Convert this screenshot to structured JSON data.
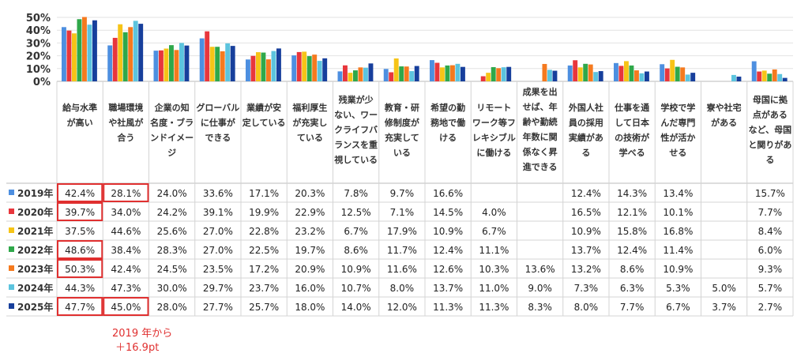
{
  "chart_data": {
    "type": "bar",
    "yticks": [
      "50%",
      "40%",
      "30%",
      "20%",
      "10%",
      "0%"
    ],
    "ylim": [
      0,
      50
    ],
    "categories": [
      [
        "給与水準",
        "が高い"
      ],
      [
        "職場環境",
        "や社風が",
        "合う"
      ],
      [
        "企業の知",
        "名度・ブラ",
        "ンドイメー",
        "ジ"
      ],
      [
        "グローバル",
        "に仕事が",
        "できる"
      ],
      [
        "業績が安",
        "定している"
      ],
      [
        "福利厚生",
        "が充実し",
        "ている"
      ],
      [
        "残業が少",
        "ない、ワー",
        "クライフバ",
        "ランスを重",
        "視している"
      ],
      [
        "教育・研",
        "修制度が",
        "充実して",
        "いる"
      ],
      [
        "希望の勤",
        "務地で働",
        "ける"
      ],
      [
        "リモート",
        "ワーク等フ",
        "レキシブル",
        "に働ける"
      ],
      [
        "成果を出",
        "せば、年",
        "齢や勤続",
        "年数に関",
        "係なく昇",
        "進できる"
      ],
      [
        "外国人社",
        "員の採用",
        "実績があ",
        "る"
      ],
      [
        "仕事を通",
        "して日本",
        "の技術が",
        "学べる"
      ],
      [
        "学校で学",
        "んだ専門",
        "性が活か",
        "せる"
      ],
      [
        "寮や社宅",
        "がある"
      ],
      [
        "母国に拠",
        "点がある",
        "など、母国",
        "と関りがあ",
        "る"
      ]
    ],
    "series": [
      {
        "name": "2019年",
        "color": "#4d8fe0",
        "values": [
          42.4,
          28.1,
          24.0,
          33.6,
          17.1,
          20.3,
          7.8,
          9.7,
          16.6,
          null,
          null,
          12.4,
          14.3,
          13.4,
          null,
          15.7
        ],
        "labels": [
          "42.4%",
          "28.1%",
          "24.0%",
          "33.6%",
          "17.1%",
          "20.3%",
          "7.8%",
          "9.7%",
          "16.6%",
          "",
          "",
          "12.4%",
          "14.3%",
          "13.4%",
          "",
          "15.7%"
        ]
      },
      {
        "name": "2020年",
        "color": "#e8363c",
        "values": [
          39.7,
          34.0,
          24.2,
          39.1,
          19.9,
          22.9,
          12.5,
          7.1,
          14.5,
          4.0,
          null,
          16.5,
          12.1,
          10.1,
          null,
          7.7
        ],
        "labels": [
          "39.7%",
          "34.0%",
          "24.2%",
          "39.1%",
          "19.9%",
          "22.9%",
          "12.5%",
          "7.1%",
          "14.5%",
          "4.0%",
          "",
          "16.5%",
          "12.1%",
          "10.1%",
          "",
          "7.7%"
        ]
      },
      {
        "name": "2021年",
        "color": "#f6c417",
        "values": [
          37.5,
          44.6,
          25.6,
          27.0,
          22.8,
          23.2,
          6.7,
          17.9,
          10.9,
          6.7,
          null,
          10.9,
          15.8,
          16.8,
          null,
          8.4
        ],
        "labels": [
          "37.5%",
          "44.6%",
          "25.6%",
          "27.0%",
          "22.8%",
          "23.2%",
          "6.7%",
          "17.9%",
          "10.9%",
          "6.7%",
          "",
          "10.9%",
          "15.8%",
          "16.8%",
          "",
          "8.4%"
        ]
      },
      {
        "name": "2022年",
        "color": "#2fa84a",
        "values": [
          48.6,
          38.4,
          28.3,
          27.0,
          22.5,
          19.7,
          8.6,
          11.7,
          12.4,
          11.1,
          null,
          13.7,
          12.4,
          11.4,
          null,
          6.0
        ],
        "labels": [
          "48.6%",
          "38.4%",
          "28.3%",
          "27.0%",
          "22.5%",
          "19.7%",
          "8.6%",
          "11.7%",
          "12.4%",
          "11.1%",
          "",
          "13.7%",
          "12.4%",
          "11.4%",
          "",
          "6.0%"
        ]
      },
      {
        "name": "2023年",
        "color": "#f57a1f",
        "values": [
          50.3,
          42.4,
          24.5,
          23.5,
          17.2,
          20.9,
          10.9,
          11.6,
          12.6,
          10.3,
          13.6,
          13.2,
          8.6,
          10.9,
          null,
          9.3
        ],
        "labels": [
          "50.3%",
          "42.4%",
          "24.5%",
          "23.5%",
          "17.2%",
          "20.9%",
          "10.9%",
          "11.6%",
          "12.6%",
          "10.3%",
          "13.6%",
          "13.2%",
          "8.6%",
          "10.9%",
          "",
          "9.3%"
        ]
      },
      {
        "name": "2024年",
        "color": "#5cc4de",
        "values": [
          44.3,
          47.3,
          30.0,
          29.7,
          23.7,
          16.0,
          10.7,
          8.0,
          13.7,
          11.0,
          9.0,
          7.3,
          6.3,
          5.3,
          5.0,
          5.7
        ],
        "labels": [
          "44.3%",
          "47.3%",
          "30.0%",
          "29.7%",
          "23.7%",
          "16.0%",
          "10.7%",
          "8.0%",
          "13.7%",
          "11.0%",
          "9.0%",
          "7.3%",
          "6.3%",
          "5.3%",
          "5.0%",
          "5.7%"
        ]
      },
      {
        "name": "2025年",
        "color": "#173f9c",
        "values": [
          47.7,
          45.0,
          28.0,
          27.7,
          25.7,
          18.0,
          14.0,
          12.0,
          11.3,
          11.3,
          8.3,
          8.0,
          7.7,
          6.7,
          3.7,
          2.7
        ],
        "labels": [
          "47.7%",
          "45.0%",
          "28.0%",
          "27.7%",
          "25.7%",
          "18.0%",
          "14.0%",
          "12.0%",
          "11.3%",
          "11.3%",
          "8.3%",
          "8.0%",
          "7.7%",
          "6.7%",
          "3.7%",
          "2.7%"
        ]
      }
    ],
    "highlights": [
      {
        "series": 0,
        "category": 0
      },
      {
        "series": 1,
        "category": 0
      },
      {
        "series": 3,
        "category": 0
      },
      {
        "series": 4,
        "category": 0
      },
      {
        "series": 6,
        "category": 0
      },
      {
        "series": 0,
        "category": 1
      },
      {
        "series": 6,
        "category": 1
      }
    ],
    "highlight_color": "#e03030",
    "grid": true
  },
  "annotation": {
    "line1": "2019 年から",
    "line2": "＋16.9pt"
  }
}
